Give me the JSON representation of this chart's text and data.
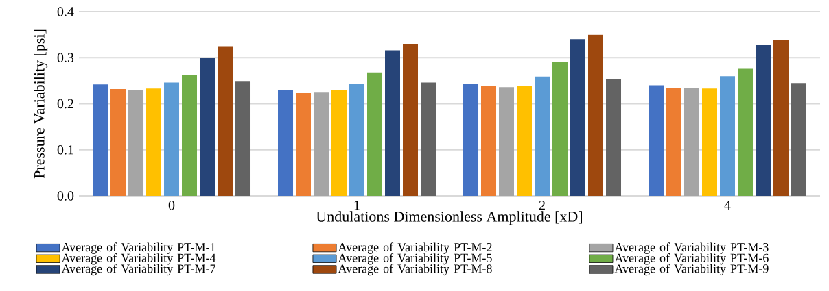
{
  "chart_data": {
    "type": "bar",
    "xlabel": "Undulations Dimensionless Amplitude [xD]",
    "ylabel": "Pressure Variability [psi]",
    "categories": [
      "0",
      "1",
      "2",
      "4"
    ],
    "series": [
      {
        "name": "Average of Variability PT-M-1",
        "color": "#4472c4",
        "values": [
          0.242,
          0.229,
          0.243,
          0.24
        ]
      },
      {
        "name": "Average of Variability PT-M-2",
        "color": "#ed7d31",
        "values": [
          0.232,
          0.223,
          0.239,
          0.235
        ]
      },
      {
        "name": "Average of Variability PT-M-3",
        "color": "#a5a5a5",
        "values": [
          0.229,
          0.224,
          0.236,
          0.235
        ]
      },
      {
        "name": "Average of Variability PT-M-4",
        "color": "#ffc000",
        "values": [
          0.233,
          0.229,
          0.238,
          0.233
        ]
      },
      {
        "name": "Average of Variability PT-M-5",
        "color": "#5b9bd5",
        "values": [
          0.246,
          0.244,
          0.259,
          0.26
        ]
      },
      {
        "name": "Average of Variability PT-M-6",
        "color": "#70ad47",
        "values": [
          0.262,
          0.268,
          0.291,
          0.276
        ]
      },
      {
        "name": "Average of Variability PT-M-7",
        "color": "#264478",
        "values": [
          0.3,
          0.316,
          0.34,
          0.327
        ]
      },
      {
        "name": "Average of Variability PT-M-8",
        "color": "#9e480e",
        "values": [
          0.325,
          0.33,
          0.35,
          0.338
        ]
      },
      {
        "name": "Average of Variability PT-M-9",
        "color": "#636363",
        "values": [
          0.248,
          0.246,
          0.253,
          0.245
        ]
      }
    ],
    "ylim": [
      0,
      0.4
    ],
    "yticks": [
      {
        "value": 0,
        "label": "0.0"
      },
      {
        "value": 0.1,
        "label": "0.1"
      },
      {
        "value": 0.2,
        "label": "0.2"
      },
      {
        "value": 0.3,
        "label": "0.3"
      },
      {
        "value": 0.4,
        "label": "0.4"
      }
    ],
    "grid": "y",
    "legend": "bottom"
  }
}
